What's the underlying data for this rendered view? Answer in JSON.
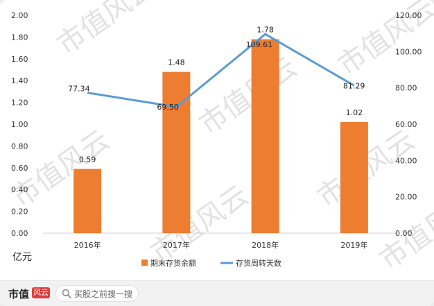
{
  "chart_data": {
    "type": "bar",
    "categories": [
      "2016年",
      "2017年",
      "2018年",
      "2019年"
    ],
    "series": [
      {
        "name": "期末存货余额",
        "type": "bar",
        "axis": "left",
        "color": "#ed7d31",
        "values": [
          0.59,
          1.48,
          1.78,
          1.02
        ],
        "labels": [
          "0.59",
          "1.48",
          "1.78",
          "1.02"
        ]
      },
      {
        "name": "存货周转天数",
        "type": "line",
        "axis": "right",
        "color": "#5b9bd5",
        "values": [
          77.34,
          69.5,
          109.61,
          81.29
        ],
        "labels": [
          "77.34",
          "69.50",
          "109.61",
          "81.29"
        ]
      }
    ],
    "y_left": {
      "range": [
        0,
        2
      ],
      "ticks": [
        "0.00",
        "0.20",
        "0.40",
        "0.60",
        "0.80",
        "1.00",
        "1.20",
        "1.40",
        "1.60",
        "1.80",
        "2.00"
      ]
    },
    "y_right": {
      "range": [
        0,
        120
      ],
      "ticks": [
        "0.00",
        "20.00",
        "40.00",
        "60.00",
        "80.00",
        "100.00",
        "120.00"
      ]
    },
    "unit_label": "亿元",
    "legend_position": "bottom",
    "grid": false
  },
  "watermark": "市值风云",
  "footer": {
    "brand_name": "市值",
    "brand_mark": "风云",
    "search_placeholder": "买股之前搜一搜"
  }
}
